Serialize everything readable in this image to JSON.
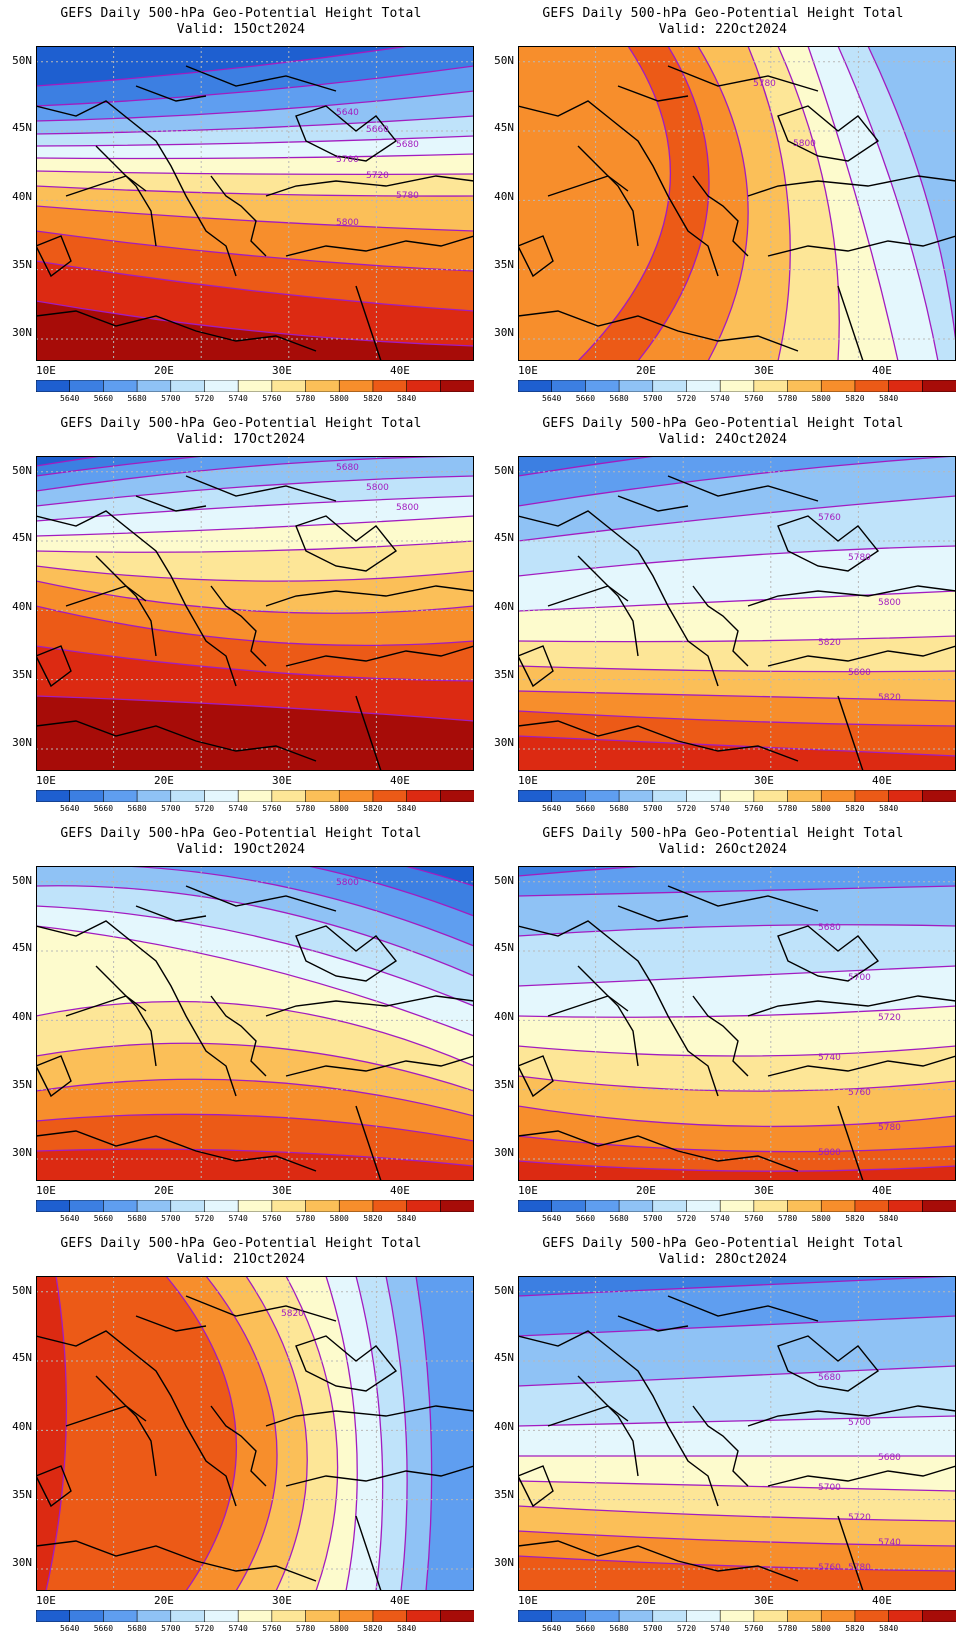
{
  "colors": {
    "levels": [
      "#1e5fd0",
      "#3c7fe2",
      "#5f9ef0",
      "#8fc2f5",
      "#bfe3fa",
      "#e4f7fd",
      "#fdfbcd",
      "#fde697",
      "#fbbf58",
      "#f78e2c",
      "#ec5a17",
      "#dc2a12",
      "#a70c08"
    ],
    "contour": "#a21cc0",
    "coast": "#000000",
    "grid": "#b8b8b8"
  },
  "colorbar_labels": [
    "5640",
    "5660",
    "5680",
    "5700",
    "5720",
    "5740",
    "5760",
    "5780",
    "5800",
    "5820",
    "5840"
  ],
  "lat_labels": [
    "50N",
    "45N",
    "40N",
    "35N",
    "30N"
  ],
  "lon_labels": [
    "10E",
    "20E",
    "30E",
    "40E"
  ],
  "panels": [
    {
      "title": "GEFS Daily 500-hPa Geo-Potential Height Total",
      "valid": "Valid: 15Oct2024",
      "levels": [
        0,
        1,
        2,
        3,
        4,
        5,
        6,
        7,
        8,
        9,
        10,
        11,
        12
      ],
      "labels": [
        "5640",
        "5660",
        "5680",
        "5700",
        "5720",
        "5780",
        "5800"
      ]
    },
    {
      "title": "GEFS Daily 500-hPa Geo-Potential Height Total",
      "valid": "Valid: 22Oct2024",
      "levels": [
        9,
        10,
        9,
        8,
        7,
        6,
        5,
        4,
        3
      ],
      "labels": [
        "5780",
        "5800"
      ]
    },
    {
      "title": "GEFS Daily 500-hPa Geo-Potential Height Total",
      "valid": "Valid: 17Oct2024",
      "levels": [
        0,
        1,
        2,
        3,
        4,
        5,
        6,
        7,
        8,
        9,
        10,
        11,
        12
      ],
      "labels": [
        "5680",
        "5800",
        "5800"
      ]
    },
    {
      "title": "GEFS Daily 500-hPa Geo-Potential Height Total",
      "valid": "Valid: 24Oct2024",
      "levels": [
        1,
        2,
        3,
        4,
        5,
        6,
        7,
        8,
        9,
        10,
        11
      ],
      "labels": [
        "5760",
        "5780",
        "5800",
        "5820",
        "5800",
        "5820"
      ]
    },
    {
      "title": "GEFS Daily 500-hPa Geo-Potential Height Total",
      "valid": "Valid: 19Oct2024",
      "levels": [
        0,
        1,
        2,
        3,
        4,
        5,
        6,
        7,
        8,
        9,
        10,
        11
      ],
      "labels": [
        "5800"
      ]
    },
    {
      "title": "GEFS Daily 500-hPa Geo-Potential Height Total",
      "valid": "Valid: 26Oct2024",
      "levels": [
        1,
        2,
        3,
        4,
        5,
        6,
        7,
        8,
        9,
        10,
        11
      ],
      "labels": [
        "5680",
        "5700",
        "5720",
        "5740",
        "5760",
        "5780",
        "5800"
      ]
    },
    {
      "title": "GEFS Daily 500-hPa Geo-Potential Height Total",
      "valid": "Valid: 21Oct2024",
      "levels": [
        11,
        10,
        9,
        8,
        7,
        6,
        5,
        4,
        3,
        2
      ],
      "labels": [
        "5820"
      ]
    },
    {
      "title": "GEFS Daily 500-hPa Geo-Potential Height Total",
      "valid": "Valid: 28Oct2024",
      "levels": [
        1,
        2,
        3,
        4,
        5,
        6,
        7,
        8,
        9,
        10
      ],
      "labels": [
        "5680",
        "5700",
        "5680",
        "5700",
        "5720",
        "5740",
        "5760",
        "5780"
      ]
    }
  ]
}
